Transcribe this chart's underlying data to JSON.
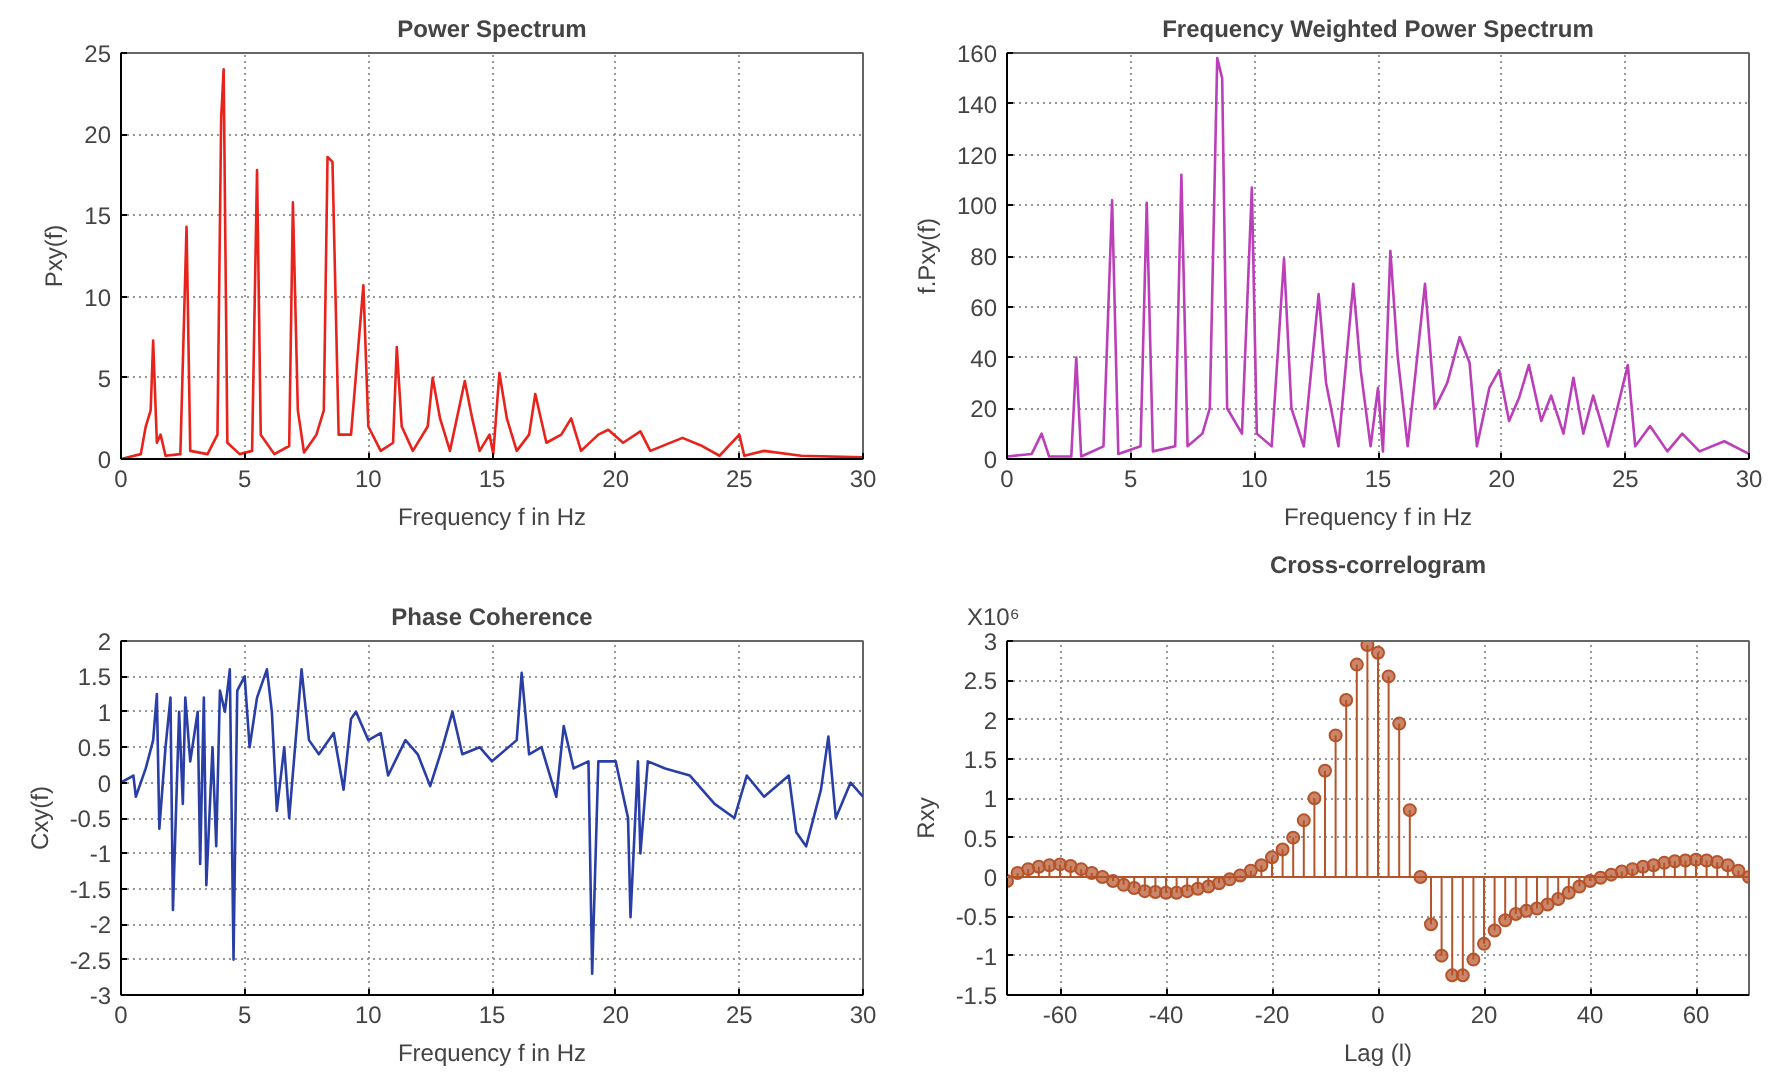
{
  "chart_data": [
    {
      "type": "line",
      "title": "Power Spectrum",
      "xlabel": "Frequency f in Hz",
      "ylabel": "Pxy(f)",
      "xlim": [
        0,
        30
      ],
      "ylim": [
        0,
        25
      ],
      "xticks": [
        0,
        5,
        10,
        15,
        20,
        25,
        30
      ],
      "yticks": [
        0,
        5,
        10,
        15,
        20,
        25
      ],
      "grid": true,
      "x": [
        0,
        0.8,
        1.0,
        1.2,
        1.3,
        1.45,
        1.6,
        1.8,
        2.4,
        2.65,
        2.8,
        3.5,
        3.9,
        4.05,
        4.15,
        4.3,
        4.8,
        5.3,
        5.5,
        5.65,
        6.2,
        6.8,
        6.95,
        7.15,
        7.4,
        7.9,
        8.2,
        8.35,
        8.55,
        8.8,
        9.3,
        9.8,
        10.0,
        10.5,
        11.0,
        11.15,
        11.35,
        11.8,
        12.4,
        12.6,
        12.9,
        13.3,
        13.9,
        14.2,
        14.5,
        14.9,
        15.05,
        15.3,
        15.6,
        16.0,
        16.5,
        16.75,
        17.2,
        17.8,
        18.2,
        18.6,
        19.3,
        19.7,
        20.3,
        21.0,
        21.4,
        22.7,
        23.5,
        24.2,
        25.0,
        25.2,
        26.0,
        27.5,
        30
      ],
      "series": [
        {
          "color": "#e8231c",
          "values": [
            0,
            0.3,
            2,
            3,
            7.3,
            1,
            1.5,
            0.2,
            0.3,
            14.3,
            0.5,
            0.3,
            1.5,
            21,
            24,
            1,
            0.3,
            0.5,
            17.8,
            1.5,
            0.3,
            0.8,
            15.8,
            3,
            0.4,
            1.5,
            3,
            18.6,
            18.3,
            1.5,
            1.5,
            10.7,
            2,
            0.5,
            1,
            6.9,
            2,
            0.5,
            2,
            5,
            2.5,
            0.5,
            4.8,
            2.5,
            0.5,
            1.5,
            0.3,
            5.3,
            2.5,
            0.5,
            1.5,
            4,
            1,
            1.5,
            2.5,
            0.5,
            1.5,
            1.8,
            1,
            1.7,
            0.5,
            1.3,
            0.8,
            0.2,
            1.5,
            0.2,
            0.5,
            0.2,
            0.1
          ]
        }
      ]
    },
    {
      "type": "line",
      "title": "Frequency Weighted Power Spectrum",
      "xlabel": "Frequency f in Hz",
      "ylabel": "f.Pxy(f)",
      "xlim": [
        0,
        30
      ],
      "ylim": [
        0,
        160
      ],
      "xticks": [
        0,
        5,
        10,
        15,
        20,
        25,
        30
      ],
      "yticks": [
        0,
        20,
        40,
        60,
        80,
        100,
        120,
        140,
        160
      ],
      "grid": true,
      "x": [
        0,
        1.0,
        1.4,
        1.7,
        2.6,
        2.8,
        3.0,
        3.9,
        4.25,
        4.5,
        5.4,
        5.65,
        5.9,
        6.8,
        7.05,
        7.3,
        7.9,
        8.2,
        8.5,
        8.7,
        8.9,
        9.5,
        9.9,
        10.1,
        10.7,
        11.2,
        11.5,
        12.0,
        12.6,
        12.9,
        13.4,
        14.0,
        14.3,
        14.7,
        15.0,
        15.2,
        15.5,
        15.8,
        16.2,
        16.9,
        17.3,
        17.8,
        18.3,
        18.7,
        19.0,
        19.5,
        19.9,
        20.3,
        20.7,
        21.1,
        21.6,
        22.0,
        22.5,
        22.9,
        23.3,
        23.7,
        24.3,
        25.1,
        25.4,
        26.0,
        26.7,
        27.3,
        28.0,
        29.0,
        30
      ],
      "series": [
        {
          "color": "#bb3fb8",
          "values": [
            1,
            2,
            10,
            1,
            1,
            40,
            1,
            5,
            102,
            2,
            5,
            101,
            3,
            5,
            112,
            5,
            10,
            20,
            158,
            150,
            20,
            10,
            107,
            10,
            5,
            79,
            20,
            5,
            65,
            30,
            5,
            69,
            35,
            5,
            28,
            3,
            82,
            40,
            5,
            69,
            20,
            30,
            48,
            38,
            5,
            28,
            35,
            15,
            24,
            37,
            15,
            25,
            10,
            32,
            10,
            25,
            5,
            37,
            5,
            13,
            3,
            10,
            3,
            7,
            2
          ]
        }
      ]
    },
    {
      "type": "line",
      "title": "Phase Coherence",
      "xlabel": "Frequency f in Hz",
      "ylabel": "Cxy(f)",
      "xlim": [
        0,
        30
      ],
      "ylim": [
        -3,
        2
      ],
      "xticks": [
        0,
        5,
        10,
        15,
        20,
        25,
        30
      ],
      "yticks": [
        -3,
        -2.5,
        -2,
        -1.5,
        -1,
        -0.5,
        0,
        0.5,
        1,
        1.5,
        2
      ],
      "grid": true,
      "x": [
        0,
        0.5,
        0.6,
        1.0,
        1.3,
        1.45,
        1.55,
        1.8,
        2.0,
        2.1,
        2.35,
        2.5,
        2.6,
        2.8,
        3.1,
        3.2,
        3.35,
        3.45,
        3.7,
        3.85,
        4.0,
        4.2,
        4.4,
        4.55,
        4.7,
        5.0,
        5.2,
        5.5,
        5.9,
        6.1,
        6.3,
        6.6,
        6.8,
        7.3,
        7.6,
        8.0,
        8.6,
        9.0,
        9.3,
        9.5,
        10.0,
        10.5,
        10.8,
        11.5,
        12.0,
        12.5,
        13.0,
        13.4,
        13.8,
        14.5,
        15.0,
        16.0,
        16.2,
        16.5,
        17.0,
        17.6,
        17.9,
        18.3,
        18.9,
        19.05,
        19.3,
        20.0,
        20.5,
        20.6,
        20.9,
        21.0,
        21.3,
        22.0,
        23.0,
        24.0,
        24.8,
        25.3,
        26.0,
        27.0,
        27.3,
        27.7,
        28.3,
        28.6,
        28.9,
        29.5,
        30
      ],
      "series": [
        {
          "color": "#2a3fa6",
          "values": [
            0,
            0.1,
            -0.2,
            0.2,
            0.6,
            1.25,
            -0.65,
            0.5,
            1.2,
            -1.8,
            1.0,
            -0.3,
            1.2,
            0.3,
            1.0,
            -1.15,
            1.2,
            -1.45,
            0.5,
            -0.9,
            1.3,
            1.0,
            1.6,
            -2.5,
            1.3,
            1.5,
            0.5,
            1.2,
            1.6,
            1.0,
            -0.4,
            0.5,
            -0.5,
            1.6,
            0.6,
            0.4,
            0.7,
            -0.1,
            0.9,
            1.0,
            0.6,
            0.7,
            0.1,
            0.6,
            0.4,
            -0.05,
            0.5,
            1.0,
            0.4,
            0.5,
            0.3,
            0.6,
            1.55,
            0.4,
            0.5,
            -0.2,
            0.8,
            0.2,
            0.3,
            -2.7,
            0.3,
            0.3,
            -0.5,
            -1.9,
            0.3,
            -1.0,
            0.3,
            0.2,
            0.1,
            -0.3,
            -0.5,
            0.1,
            -0.2,
            0.1,
            -0.7,
            -0.9,
            -0.1,
            0.65,
            -0.5,
            0.0,
            -0.2
          ]
        }
      ]
    },
    {
      "type": "lollipop",
      "title": "Cross-correlogram",
      "xlabel": "Lag (l)",
      "ylabel": "Rxy",
      "annotations": [
        "X10⁶"
      ],
      "marker": "circle",
      "ref_lines": [
        {
          "axis": "y",
          "value": 0,
          "color": "#b5532a"
        }
      ],
      "xlim": [
        -70,
        70
      ],
      "ylim": [
        -1.5,
        3
      ],
      "xticks": [
        -60,
        -40,
        -20,
        0,
        20,
        40,
        60
      ],
      "yticks": [
        -1.5,
        -1,
        -0.5,
        0,
        0.5,
        1,
        1.5,
        2,
        2.5,
        3
      ],
      "grid": true,
      "x": [
        -70,
        -68,
        -66,
        -64,
        -62,
        -60,
        -58,
        -56,
        -54,
        -52,
        -50,
        -48,
        -46,
        -44,
        -42,
        -40,
        -38,
        -36,
        -34,
        -32,
        -30,
        -28,
        -26,
        -24,
        -22,
        -20,
        -18,
        -16,
        -14,
        -12,
        -10,
        -8,
        -6,
        -4,
        -2,
        0,
        2,
        4,
        6,
        8,
        10,
        12,
        14,
        16,
        18,
        20,
        22,
        24,
        26,
        28,
        30,
        32,
        34,
        36,
        38,
        40,
        42,
        44,
        46,
        48,
        50,
        52,
        54,
        56,
        58,
        60,
        62,
        64,
        66,
        68,
        70
      ],
      "series": [
        {
          "color": "#b5532a",
          "values": [
            -0.05,
            0.05,
            0.1,
            0.13,
            0.15,
            0.16,
            0.14,
            0.1,
            0.05,
            0.0,
            -0.05,
            -0.1,
            -0.14,
            -0.18,
            -0.19,
            -0.2,
            -0.2,
            -0.18,
            -0.15,
            -0.12,
            -0.08,
            -0.03,
            0.02,
            0.08,
            0.15,
            0.25,
            0.35,
            0.5,
            0.72,
            1.0,
            1.35,
            1.8,
            2.25,
            2.7,
            2.95,
            2.85,
            2.55,
            1.95,
            0.85,
            0.0,
            -0.6,
            -1.0,
            -1.25,
            -1.25,
            -1.05,
            -0.85,
            -0.68,
            -0.55,
            -0.47,
            -0.43,
            -0.4,
            -0.35,
            -0.28,
            -0.2,
            -0.12,
            -0.05,
            -0.01,
            0.03,
            0.07,
            0.1,
            0.13,
            0.15,
            0.18,
            0.2,
            0.21,
            0.22,
            0.21,
            0.19,
            0.15,
            0.08,
            0.0
          ]
        }
      ]
    }
  ]
}
